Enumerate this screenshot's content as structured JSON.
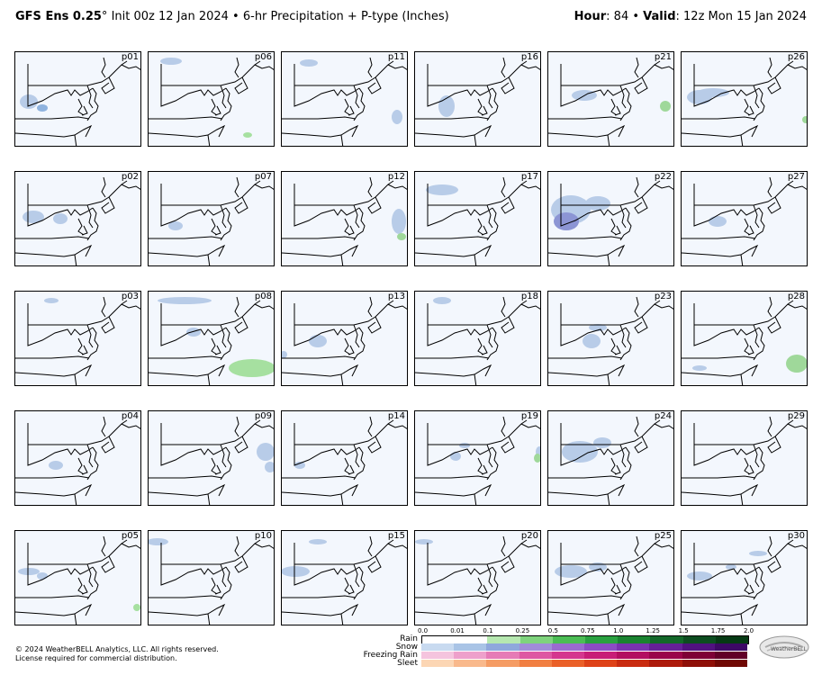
{
  "header": {
    "model": "GFS Ens 0.25",
    "degree": "°",
    "init": "Init 00z 12 Jan 2024",
    "bullet": "•",
    "product": "6-hr Precipitation + P-type (Inches)",
    "hour_label": "Hour",
    "hour_value": ": 84",
    "valid_label": "Valid",
    "valid_value": ": 12z Mon 15 Jan 2024"
  },
  "panels": [
    {
      "label": "p01",
      "blobs": [
        [
          "#b8cce8",
          15,
          55,
          10,
          8
        ],
        [
          "#8fb3df",
          30,
          62,
          6,
          4
        ]
      ]
    },
    {
      "label": "p06",
      "blobs": [
        [
          "#b8cce8",
          25,
          10,
          12,
          4
        ],
        [
          "#a6e0a0",
          110,
          92,
          5,
          3
        ]
      ]
    },
    {
      "label": "p11",
      "blobs": [
        [
          "#b8cce8",
          30,
          12,
          10,
          4
        ],
        [
          "#b8cce8",
          128,
          72,
          6,
          8
        ]
      ]
    },
    {
      "label": "p16",
      "blobs": [
        [
          "#b8cce8",
          35,
          60,
          9,
          12
        ]
      ]
    },
    {
      "label": "p21",
      "blobs": [
        [
          "#b8cce8",
          40,
          48,
          14,
          6
        ],
        [
          "#9fd89a",
          130,
          60,
          6,
          6
        ]
      ]
    },
    {
      "label": "p26",
      "blobs": [
        [
          "#b8cce8",
          20,
          50,
          14,
          8
        ],
        [
          "#b8cce8",
          35,
          45,
          18,
          5
        ],
        [
          "#9fd89a",
          138,
          75,
          4,
          4
        ]
      ]
    },
    {
      "label": "p02",
      "blobs": [
        [
          "#b8cce8",
          20,
          50,
          12,
          7
        ],
        [
          "#b8cce8",
          50,
          52,
          8,
          6
        ]
      ]
    },
    {
      "label": "p07",
      "blobs": [
        [
          "#b8cce8",
          30,
          60,
          8,
          5
        ]
      ]
    },
    {
      "label": "p12",
      "blobs": [
        [
          "#b8cce8",
          130,
          55,
          8,
          14
        ],
        [
          "#9fd89a",
          133,
          72,
          5,
          4
        ]
      ]
    },
    {
      "label": "p17",
      "blobs": [
        [
          "#b8cce8",
          30,
          20,
          18,
          6
        ]
      ]
    },
    {
      "label": "p22",
      "blobs": [
        [
          "#b8cce8",
          25,
          42,
          22,
          16
        ],
        [
          "#8c95d4",
          20,
          55,
          14,
          10
        ],
        [
          "#b8cce8",
          55,
          35,
          14,
          8
        ]
      ]
    },
    {
      "label": "p27",
      "blobs": [
        [
          "#b8cce8",
          40,
          55,
          10,
          6
        ]
      ]
    },
    {
      "label": "p03",
      "blobs": [
        [
          "#b8cce8",
          40,
          10,
          8,
          3
        ]
      ]
    },
    {
      "label": "p08",
      "blobs": [
        [
          "#b8cce8",
          50,
          45,
          8,
          5
        ],
        [
          "#b8cce8",
          40,
          10,
          30,
          4
        ],
        [
          "#a6e0a0",
          115,
          85,
          26,
          10
        ]
      ]
    },
    {
      "label": "p13",
      "blobs": [
        [
          "#b8cce8",
          40,
          55,
          10,
          7
        ],
        [
          "#b8cce8",
          2,
          70,
          4,
          4
        ]
      ]
    },
    {
      "label": "p18",
      "blobs": [
        [
          "#b8cce8",
          30,
          10,
          10,
          4
        ]
      ]
    },
    {
      "label": "p23",
      "blobs": [
        [
          "#b8cce8",
          48,
          55,
          10,
          8
        ],
        [
          "#b8cce8",
          55,
          40,
          10,
          4
        ]
      ]
    },
    {
      "label": "p28",
      "blobs": [
        [
          "#b8cce8",
          20,
          85,
          8,
          3
        ],
        [
          "#9fd89a",
          128,
          80,
          12,
          10
        ]
      ]
    },
    {
      "label": "p04",
      "blobs": [
        [
          "#b8cce8",
          45,
          60,
          8,
          5
        ]
      ]
    },
    {
      "label": "p09",
      "blobs": [
        [
          "#b8cce8",
          130,
          45,
          10,
          10
        ],
        [
          "#b8cce8",
          135,
          62,
          6,
          6
        ]
      ]
    },
    {
      "label": "p14",
      "blobs": [
        [
          "#b8cce8",
          20,
          60,
          6,
          4
        ]
      ]
    },
    {
      "label": "p19",
      "blobs": [
        [
          "#b8cce8",
          45,
          50,
          6,
          5
        ],
        [
          "#b8cce8",
          55,
          38,
          6,
          3
        ],
        [
          "#b8cce8",
          138,
          45,
          4,
          6
        ],
        [
          "#9fd89a",
          136,
          52,
          4,
          5
        ]
      ]
    },
    {
      "label": "p24",
      "blobs": [
        [
          "#b8cce8",
          35,
          45,
          20,
          12
        ],
        [
          "#b8cce8",
          60,
          35,
          10,
          6
        ]
      ]
    },
    {
      "label": "p29",
      "blobs": []
    },
    {
      "label": "p05",
      "blobs": [
        [
          "#b8cce8",
          15,
          45,
          12,
          4
        ],
        [
          "#b8cce8",
          30,
          50,
          6,
          4
        ],
        [
          "#a6e0a0",
          135,
          85,
          4,
          4
        ]
      ]
    },
    {
      "label": "p10",
      "blobs": [
        [
          "#b8cce8",
          10,
          12,
          12,
          4
        ]
      ]
    },
    {
      "label": "p15",
      "blobs": [
        [
          "#b8cce8",
          15,
          45,
          16,
          6
        ],
        [
          "#b8cce8",
          40,
          12,
          10,
          3
        ]
      ]
    },
    {
      "label": "p20",
      "blobs": [
        [
          "#b8cce8",
          10,
          12,
          10,
          3
        ]
      ]
    },
    {
      "label": "p25",
      "blobs": [
        [
          "#b8cce8",
          25,
          45,
          18,
          7
        ],
        [
          "#b8cce8",
          55,
          40,
          10,
          5
        ]
      ]
    },
    {
      "label": "p30",
      "blobs": [
        [
          "#b8cce8",
          20,
          50,
          14,
          5
        ],
        [
          "#b8cce8",
          55,
          40,
          6,
          3
        ],
        [
          "#b8cce8",
          85,
          25,
          10,
          3
        ]
      ]
    }
  ],
  "legend": {
    "ticks": [
      "0.0",
      "0.01",
      "0.1",
      "0.25",
      "0.5",
      "0.75",
      "1.0",
      "1.25",
      "1.5",
      "1.75",
      "2.0"
    ],
    "rows": [
      {
        "label": "Rain",
        "colors": [
          "#ffffff",
          "#ffffff",
          "#b6e8b0",
          "#7fd37d",
          "#4cbd55",
          "#2aa140",
          "#1b8330",
          "#14682a",
          "#0d4d20",
          "#063a14"
        ]
      },
      {
        "label": "Snow",
        "colors": [
          "#c8daf0",
          "#a9c4e6",
          "#8fa8dc",
          "#a18cd9",
          "#9b6ad0",
          "#8c4bc4",
          "#7a32b0",
          "#661f98",
          "#511180",
          "#3d0866"
        ]
      },
      {
        "label": "Freezing Rain",
        "colors": [
          "#f5c4de",
          "#eea0cb",
          "#e67bb6",
          "#de57a2",
          "#d5368e",
          "#c81d77",
          "#b30e60",
          "#9a0549",
          "#7e0136",
          "#620028"
        ]
      },
      {
        "label": "Sleet",
        "colors": [
          "#fcd6b4",
          "#f9b98c",
          "#f59c64",
          "#f17f42",
          "#ea6028",
          "#de4218",
          "#c92b10",
          "#ad1a0b",
          "#8e0f07",
          "#700804"
        ]
      }
    ]
  },
  "footer": {
    "line1": "© 2024 WeatherBELL Analytics, LLC. All rights reserved.",
    "line2": "License required for commercial distribution."
  },
  "logo_text": "WeatherBELL"
}
